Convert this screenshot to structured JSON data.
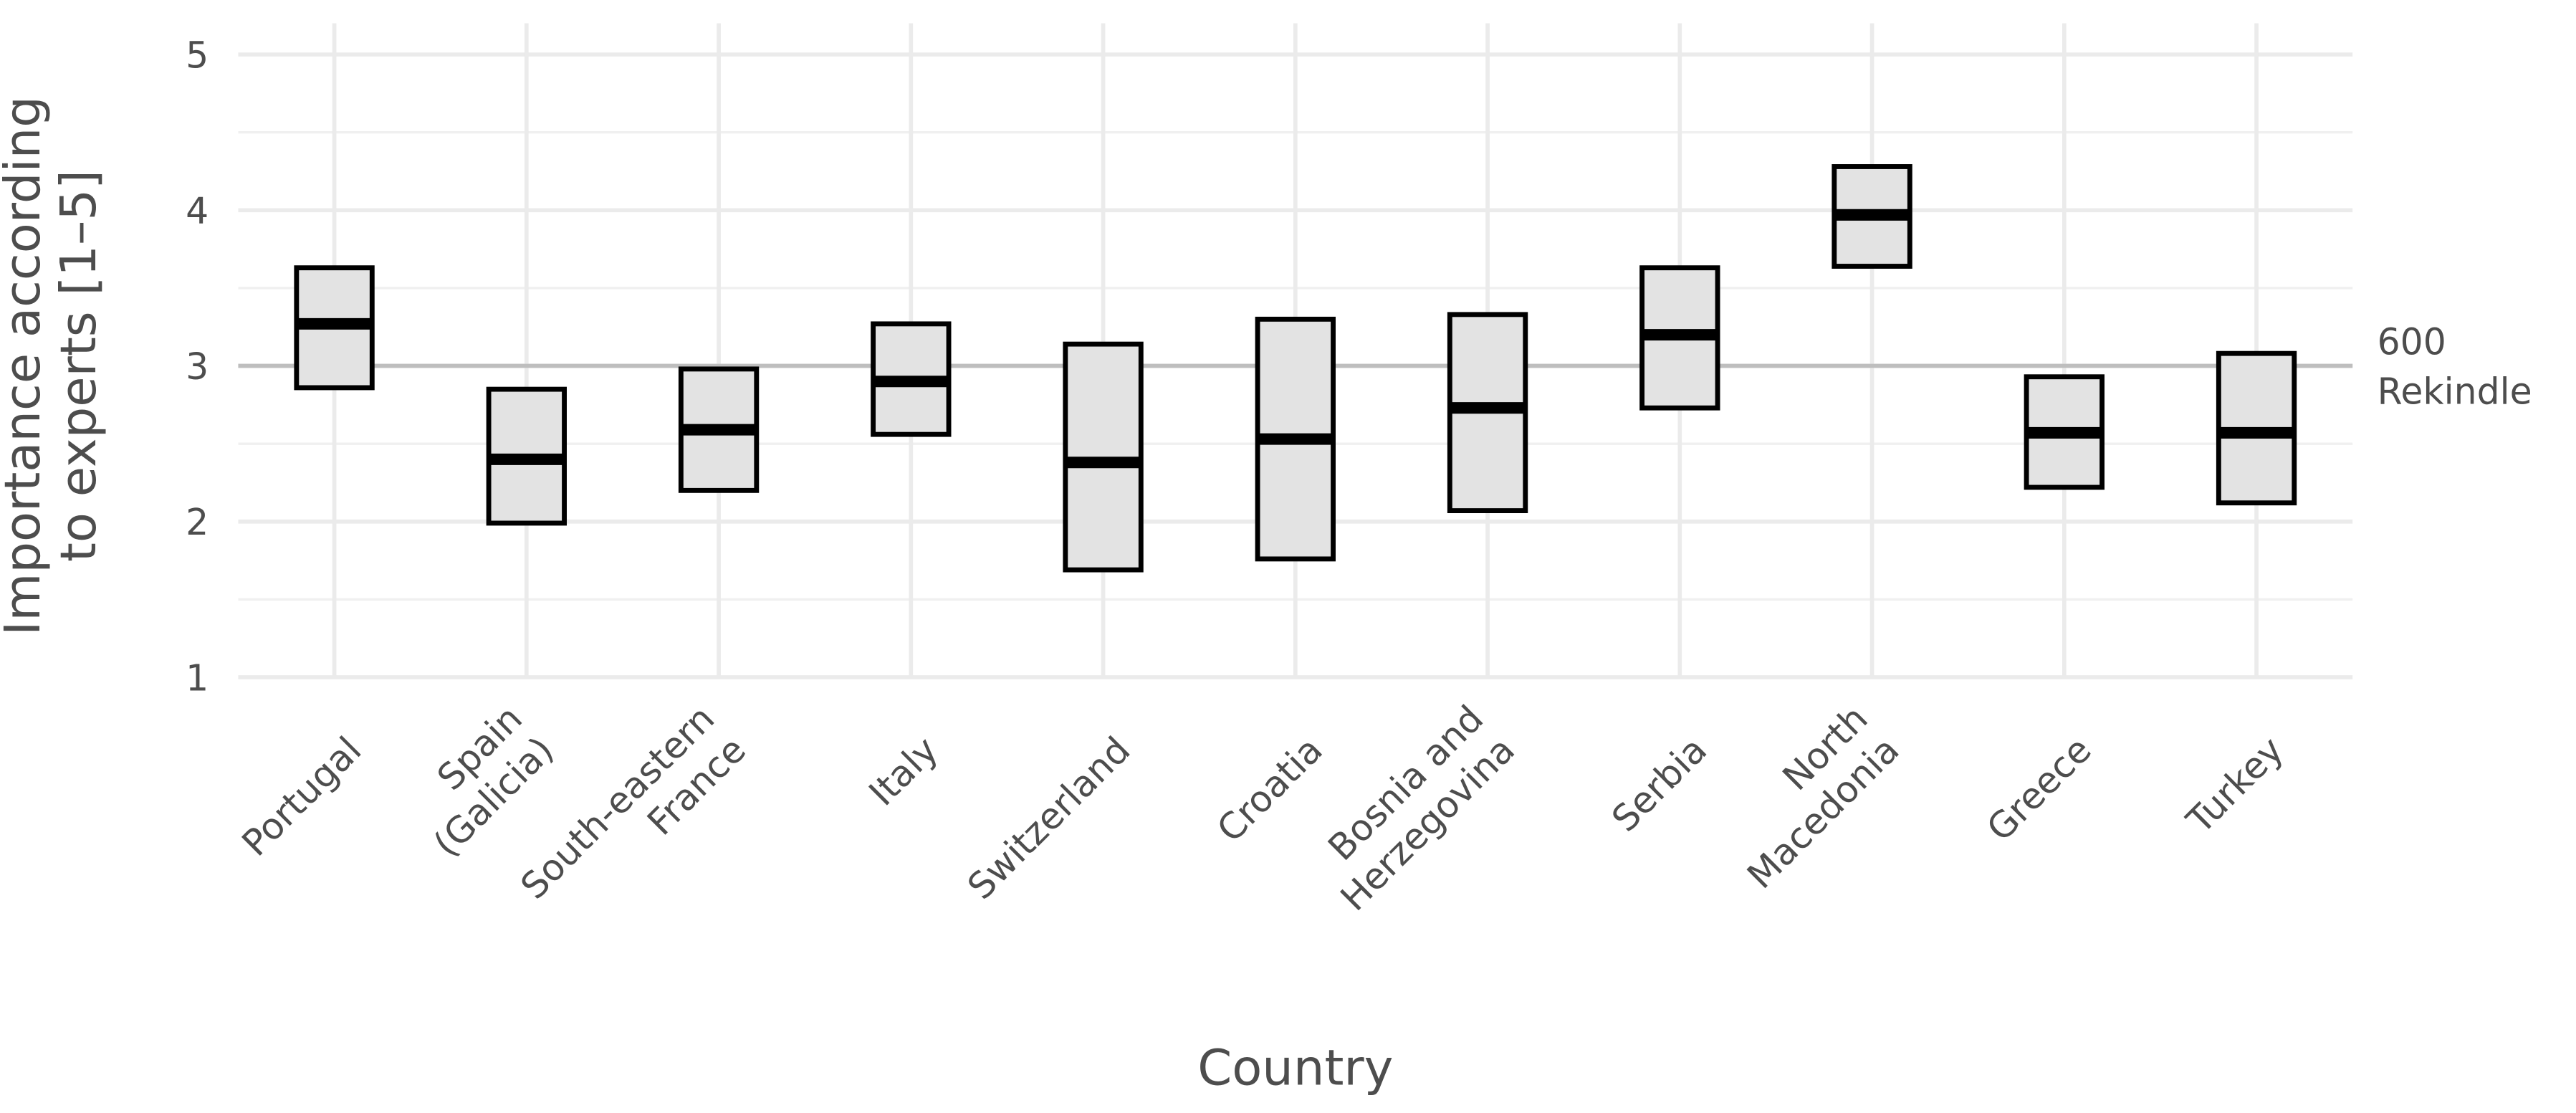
{
  "chart_data": {
    "type": "crossbar",
    "y_label": "Importance according\nto experts [1–5]",
    "x_label": "Country",
    "categories": [
      "Portugal",
      "Spain\n(Galicia)",
      "South-eastern\nFrance",
      "Italy",
      "Switzerland",
      "Croatia",
      "Bosnia and\nHerzegovina",
      "Serbia",
      "North\nMacedonia",
      "Greece",
      "Turkey"
    ],
    "high": [
      3.63,
      2.85,
      2.98,
      3.27,
      3.14,
      3.3,
      3.33,
      3.63,
      4.28,
      2.93,
      3.08
    ],
    "median": [
      3.27,
      2.4,
      2.59,
      2.9,
      2.38,
      2.53,
      2.73,
      3.2,
      3.97,
      2.57,
      2.57
    ],
    "low": [
      2.86,
      1.99,
      2.2,
      2.56,
      1.69,
      1.76,
      2.07,
      2.73,
      3.64,
      2.22,
      2.12
    ],
    "color": "#e3e3e3",
    "ylim": [
      1,
      5
    ],
    "yticks": [
      1,
      2,
      3,
      4,
      5
    ],
    "yticks_minor": [
      1.5,
      2.5,
      3.5,
      4.5
    ],
    "grid": true,
    "reference_line": {
      "value": 3,
      "label": "600\nRekindle"
    }
  }
}
